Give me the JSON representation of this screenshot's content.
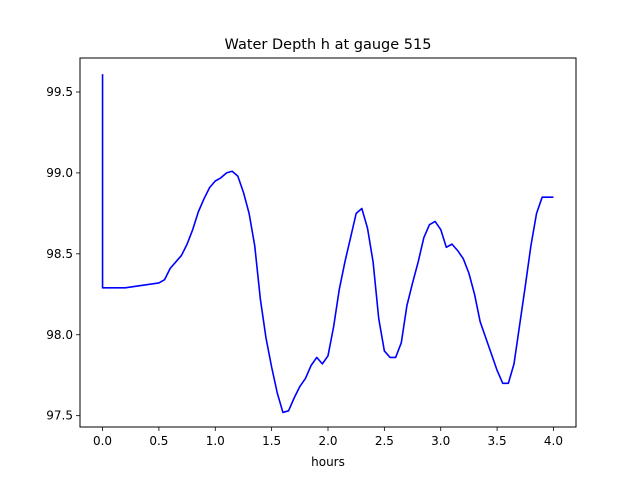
{
  "chart_data": {
    "type": "line",
    "title": "Water Depth h at gauge 515",
    "xlabel": "hours",
    "ylabel": "",
    "xlim": [
      -0.2,
      4.2
    ],
    "ylim": [
      97.43,
      99.71
    ],
    "xticks": [
      0.0,
      0.5,
      1.0,
      1.5,
      2.0,
      2.5,
      3.0,
      3.5,
      4.0
    ],
    "xtick_labels": [
      "0.0",
      "0.5",
      "1.0",
      "1.5",
      "2.0",
      "2.5",
      "3.0",
      "3.5",
      "4.0"
    ],
    "yticks": [
      97.5,
      98.0,
      98.5,
      99.0,
      99.5
    ],
    "ytick_labels": [
      "97.5",
      "98.0",
      "98.5",
      "99.0",
      "99.5"
    ],
    "grid": false,
    "series": [
      {
        "color": "#0000ff",
        "x": [
          0.0,
          0.0,
          0.1,
          0.2,
          0.3,
          0.4,
          0.5,
          0.55,
          0.6,
          0.65,
          0.7,
          0.75,
          0.8,
          0.85,
          0.9,
          0.95,
          1.0,
          1.05,
          1.1,
          1.15,
          1.2,
          1.25,
          1.3,
          1.35,
          1.4,
          1.45,
          1.5,
          1.55,
          1.6,
          1.65,
          1.7,
          1.75,
          1.8,
          1.85,
          1.9,
          1.95,
          2.0,
          2.05,
          2.1,
          2.15,
          2.2,
          2.25,
          2.3,
          2.35,
          2.4,
          2.45,
          2.5,
          2.55,
          2.6,
          2.65,
          2.7,
          2.75,
          2.8,
          2.85,
          2.9,
          2.95,
          3.0,
          3.05,
          3.1,
          3.15,
          3.2,
          3.25,
          3.3,
          3.35,
          3.4,
          3.45,
          3.5,
          3.55,
          3.6,
          3.65,
          3.7,
          3.75,
          3.8,
          3.85,
          3.9,
          3.95,
          4.0
        ],
        "y": [
          99.61,
          98.29,
          98.29,
          98.29,
          98.3,
          98.31,
          98.32,
          98.34,
          98.41,
          98.45,
          98.49,
          98.56,
          98.65,
          98.76,
          98.84,
          98.91,
          98.95,
          98.97,
          99.0,
          99.01,
          98.98,
          98.88,
          98.75,
          98.55,
          98.22,
          97.98,
          97.8,
          97.64,
          97.52,
          97.53,
          97.61,
          97.68,
          97.73,
          97.81,
          97.86,
          97.82,
          97.87,
          98.05,
          98.28,
          98.45,
          98.6,
          98.75,
          98.78,
          98.66,
          98.45,
          98.1,
          97.9,
          97.86,
          97.86,
          97.95,
          98.18,
          98.32,
          98.45,
          98.6,
          98.68,
          98.7,
          98.65,
          98.54,
          98.56,
          98.52,
          98.47,
          98.38,
          98.25,
          98.08,
          97.98,
          97.88,
          97.78,
          97.7,
          97.7,
          97.82,
          98.06,
          98.3,
          98.55,
          98.75,
          98.85,
          98.85,
          98.85
        ]
      }
    ]
  }
}
